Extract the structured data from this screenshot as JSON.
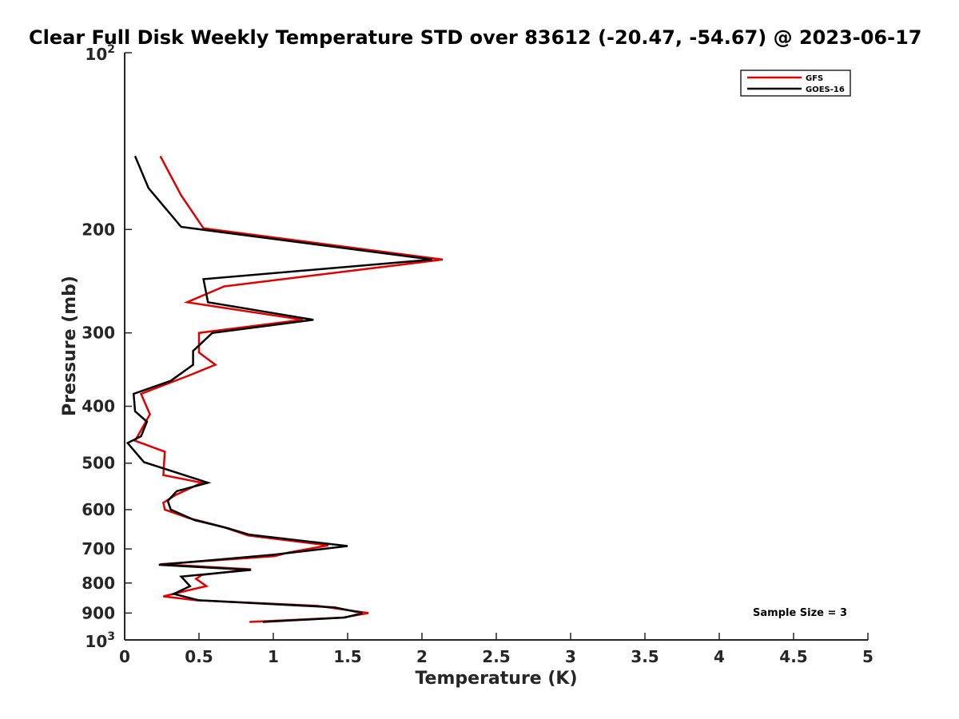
{
  "chart_data": {
    "type": "line",
    "title": "Clear Full Disk Weekly Temperature STD over 83612 (-20.47, -54.67) @ 2023-06-17",
    "xlabel": "Temperature (K)",
    "ylabel": "Pressure (mb)",
    "xlim": [
      0,
      5
    ],
    "ylim": [
      100,
      1000
    ],
    "y_scale": "log",
    "y_reversed": true,
    "grid": false,
    "legend_position": "top-right",
    "x_ticks": [
      "0",
      "0.5",
      "1",
      "1.5",
      "2",
      "2.5",
      "3",
      "3.5",
      "4",
      "4.5",
      "5"
    ],
    "y_ticks": [
      {
        "value": 100,
        "base": "10",
        "exp": "2"
      },
      {
        "value": 200,
        "label": "200"
      },
      {
        "value": 300,
        "label": "300"
      },
      {
        "value": 400,
        "label": "400"
      },
      {
        "value": 500,
        "label": "500"
      },
      {
        "value": 600,
        "label": "600"
      },
      {
        "value": 700,
        "label": "700"
      },
      {
        "value": 800,
        "label": "800"
      },
      {
        "value": 900,
        "label": "900"
      },
      {
        "value": 1000,
        "base": "10",
        "exp": "3"
      }
    ],
    "annotation": "Sample Size = 3",
    "series": [
      {
        "name": "GFS",
        "color": "#e00000",
        "points": [
          [
            0.24,
            150
          ],
          [
            0.38,
            175
          ],
          [
            0.53,
            199
          ],
          [
            2.14,
            225
          ],
          [
            0.67,
            250
          ],
          [
            0.42,
            266
          ],
          [
            1.2,
            285
          ],
          [
            0.5,
            300
          ],
          [
            0.5,
            324
          ],
          [
            0.61,
            340
          ],
          [
            0.44,
            354
          ],
          [
            0.11,
            381
          ],
          [
            0.17,
            413
          ],
          [
            0.07,
            458
          ],
          [
            0.27,
            478
          ],
          [
            0.26,
            524
          ],
          [
            0.52,
            540
          ],
          [
            0.34,
            567
          ],
          [
            0.26,
            584
          ],
          [
            0.27,
            600
          ],
          [
            0.43,
            620
          ],
          [
            0.66,
            642
          ],
          [
            0.83,
            664
          ],
          [
            1.37,
            690
          ],
          [
            1.1,
            710
          ],
          [
            1.01,
            720
          ],
          [
            0.24,
            743
          ],
          [
            0.85,
            758
          ],
          [
            0.52,
            775
          ],
          [
            0.48,
            787
          ],
          [
            0.55,
            810
          ],
          [
            0.44,
            822
          ],
          [
            0.26,
            843
          ],
          [
            0.48,
            856
          ],
          [
            1.3,
            875
          ],
          [
            1.64,
            900
          ],
          [
            1.47,
            916
          ],
          [
            0.84,
            932
          ]
        ]
      },
      {
        "name": "GOES-16",
        "color": "#000000",
        "points": [
          [
            0.07,
            150
          ],
          [
            0.16,
            170
          ],
          [
            0.38,
            198
          ],
          [
            2.07,
            225
          ],
          [
            0.53,
            243
          ],
          [
            0.56,
            266
          ],
          [
            1.27,
            285
          ],
          [
            0.59,
            300
          ],
          [
            0.46,
            322
          ],
          [
            0.46,
            340
          ],
          [
            0.31,
            362
          ],
          [
            0.06,
            381
          ],
          [
            0.07,
            408
          ],
          [
            0.15,
            425
          ],
          [
            0.11,
            450
          ],
          [
            0.02,
            462
          ],
          [
            0.13,
            498
          ],
          [
            0.56,
            540
          ],
          [
            0.35,
            558
          ],
          [
            0.29,
            580
          ],
          [
            0.31,
            600
          ],
          [
            0.47,
            625
          ],
          [
            0.69,
            645
          ],
          [
            0.84,
            662
          ],
          [
            1.5,
            692
          ],
          [
            1.0,
            716
          ],
          [
            0.23,
            745
          ],
          [
            0.85,
            760
          ],
          [
            0.38,
            780
          ],
          [
            0.44,
            810
          ],
          [
            0.33,
            835
          ],
          [
            0.5,
            856
          ],
          [
            1.41,
            880
          ],
          [
            1.6,
            900
          ],
          [
            1.48,
            916
          ],
          [
            0.93,
            932
          ]
        ]
      }
    ]
  }
}
